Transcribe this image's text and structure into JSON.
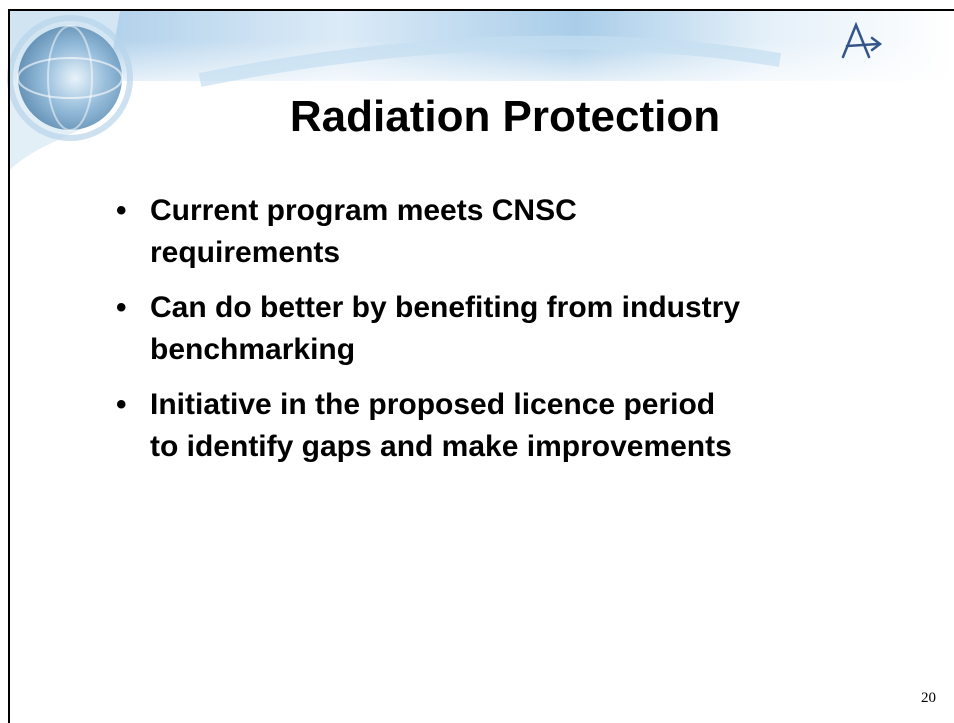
{
  "slide": {
    "title": "Radiation Protection",
    "bullets": [
      [
        "Current program meets CNSC",
        "requirements"
      ],
      [
        "Can do better by benefiting from industry",
        "benchmarking"
      ],
      [
        "Initiative in the proposed licence period",
        "to identify gaps and make improvements"
      ]
    ],
    "page_number": "20"
  }
}
